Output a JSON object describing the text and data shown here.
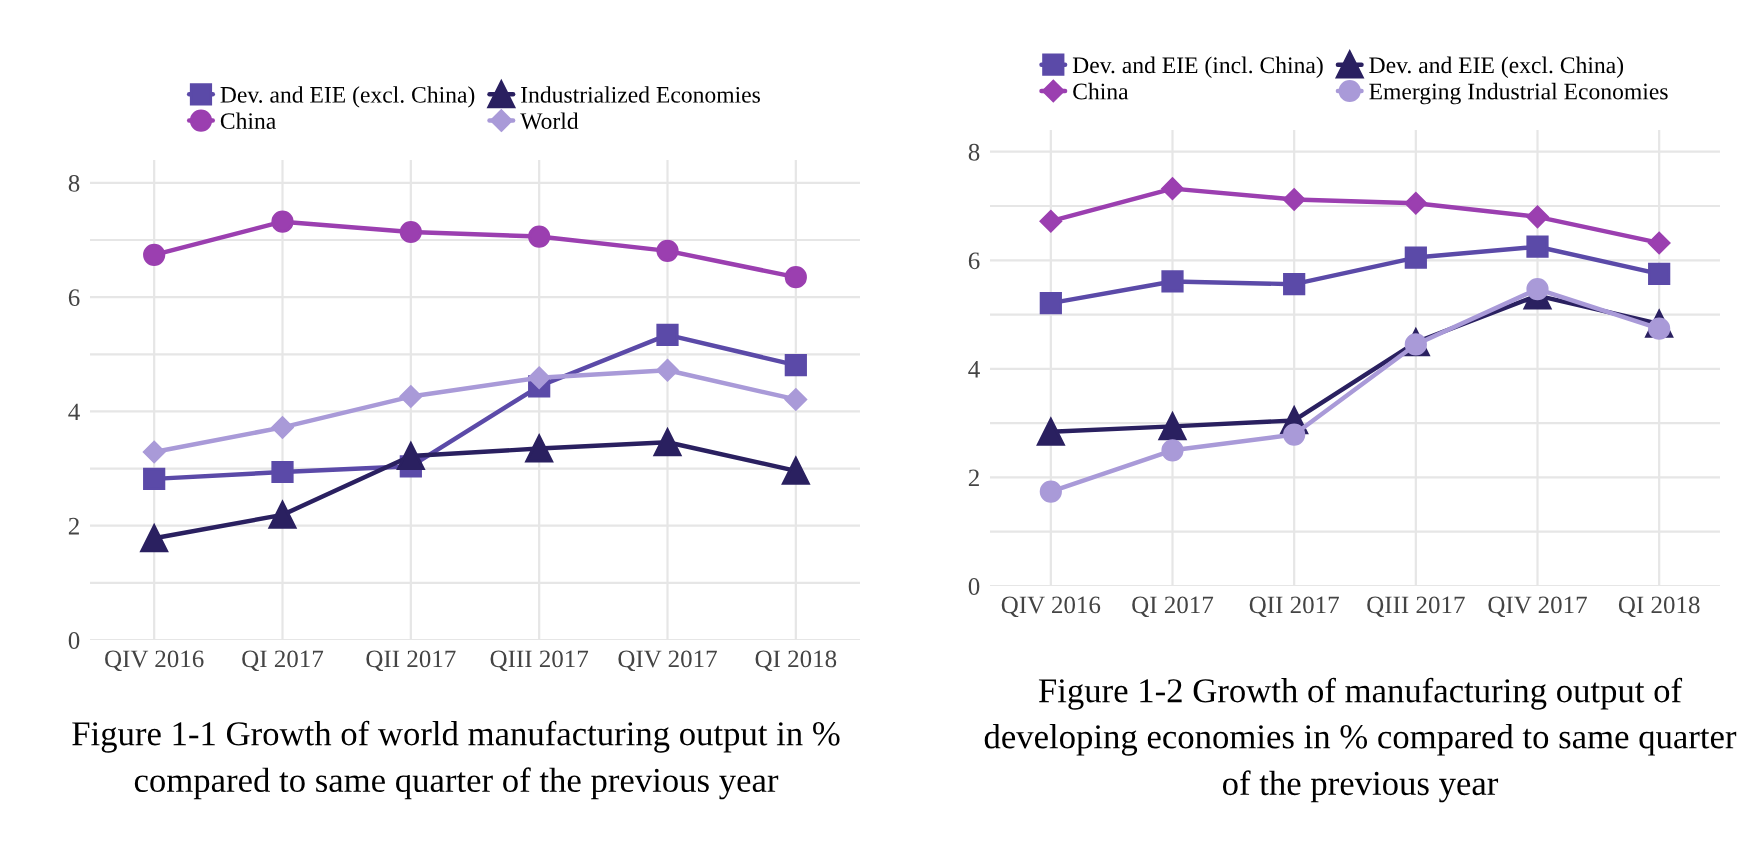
{
  "chart_data": [
    {
      "type": "line",
      "categories": [
        "QIV 2016",
        "QI 2017",
        "QII 2017",
        "QIII 2017",
        "QIV 2017",
        "QI 2018"
      ],
      "series": [
        {
          "name": "Dev. and EIE (excl. China)",
          "color": "#5b4aa8",
          "marker": "square",
          "values": [
            2.82,
            2.94,
            3.04,
            4.44,
            5.34,
            4.81
          ]
        },
        {
          "name": "Industrialized Economies",
          "color": "#2a2060",
          "marker": "triangle",
          "values": [
            1.78,
            2.19,
            3.22,
            3.35,
            3.46,
            2.96
          ]
        },
        {
          "name": "China",
          "color": "#9b3fb0",
          "marker": "circle",
          "values": [
            6.74,
            7.32,
            7.14,
            7.06,
            6.81,
            6.35
          ]
        },
        {
          "name": "World",
          "color": "#a99ad8",
          "marker": "diamond",
          "values": [
            3.29,
            3.72,
            4.26,
            4.59,
            4.72,
            4.21
          ]
        }
      ],
      "ylim": [
        0,
        8.4
      ],
      "yticks": [
        0,
        {
          "value": 1,
          "label": null
        },
        2,
        {
          "value": 3,
          "label": null
        },
        4,
        {
          "value": 5,
          "label": null
        },
        6,
        {
          "value": 7,
          "label": null
        },
        8
      ],
      "grid": true,
      "legend": "top",
      "annotations": [
        "Figure 1-1 Growth of world manufacturing output in % compared to same quarter of the previous year"
      ]
    },
    {
      "type": "line",
      "categories": [
        "QIV 2016",
        "QI 2017",
        "QII 2017",
        "QIII 2017",
        "QIV 2017",
        "QI 2018"
      ],
      "series": [
        {
          "name": "Dev. and EIE (incl. China)",
          "color": "#5b4aa8",
          "marker": "square",
          "values": [
            5.21,
            5.61,
            5.56,
            6.05,
            6.25,
            5.75
          ]
        },
        {
          "name": "Dev. and EIE (excl. China)",
          "color": "#2a2060",
          "marker": "triangle",
          "values": [
            2.84,
            2.94,
            3.05,
            4.49,
            5.35,
            4.83
          ]
        },
        {
          "name": "China",
          "color": "#9b3fb0",
          "marker": "diamond",
          "values": [
            6.72,
            7.32,
            7.12,
            7.05,
            6.8,
            6.32
          ]
        },
        {
          "name": "Emerging Industrial Economies",
          "color": "#a99ad8",
          "marker": "circle",
          "values": [
            1.74,
            2.5,
            2.79,
            4.45,
            5.47,
            4.74
          ]
        }
      ],
      "ylim": [
        0,
        8.4
      ],
      "yticks": [
        0,
        {
          "value": 1,
          "label": null
        },
        2,
        {
          "value": 3,
          "label": null
        },
        4,
        {
          "value": 5,
          "label": null
        },
        6,
        {
          "value": 7,
          "label": null
        },
        8
      ],
      "grid": true,
      "legend": "top",
      "annotations": [
        "Figure 1-2 Growth of manufacturing output of developing economies in % compared to same quarter of the previous year"
      ]
    }
  ]
}
